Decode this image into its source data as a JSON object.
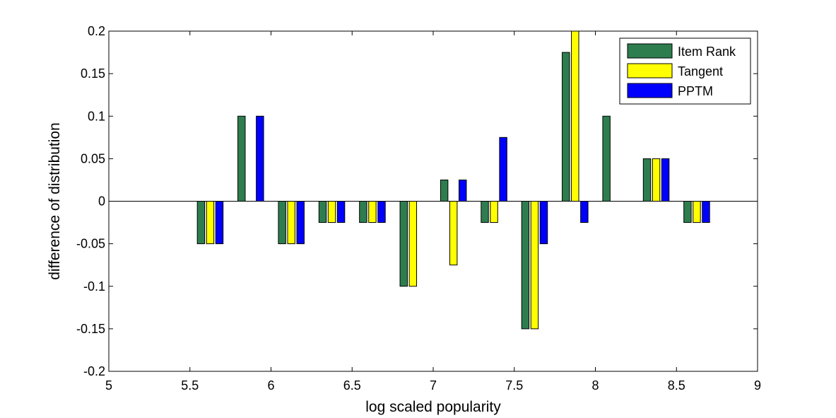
{
  "chart_data": {
    "type": "bar",
    "xlabel": "log scaled popularity",
    "ylabel": "difference of distribution",
    "xlim": [
      5,
      9
    ],
    "ylim": [
      -0.2,
      0.2
    ],
    "xticks": [
      "5",
      "5.5",
      "6",
      "6.5",
      "7",
      "7.5",
      "8",
      "8.5",
      "9"
    ],
    "yticks": [
      "-0.2",
      "-0.15",
      "-0.1",
      "-0.05",
      "0",
      "0.05",
      "0.1",
      "0.15",
      "0.2"
    ],
    "x": [
      5.625,
      5.875,
      6.125,
      6.375,
      6.625,
      6.875,
      7.125,
      7.375,
      7.625,
      7.875,
      8.125,
      8.375,
      8.625
    ],
    "series": [
      {
        "name": "Item Rank",
        "color": "#2e7d4f",
        "values": [
          -0.05,
          0.1,
          -0.05,
          -0.025,
          -0.025,
          -0.1,
          0.025,
          -0.025,
          -0.15,
          0.175,
          0.1,
          0.05,
          -0.025
        ]
      },
      {
        "name": "Tangent",
        "color": "#ffff00",
        "values": [
          -0.05,
          0,
          -0.05,
          -0.025,
          -0.025,
          -0.1,
          -0.075,
          -0.025,
          -0.15,
          0.2,
          0,
          0.05,
          -0.025
        ]
      },
      {
        "name": "PPTM",
        "color": "#0000ff",
        "values": [
          -0.05,
          0.1,
          -0.05,
          -0.025,
          -0.025,
          0,
          0.025,
          0.075,
          -0.05,
          -0.025,
          0,
          0.05,
          -0.025
        ]
      }
    ],
    "legend_position": "top-right",
    "grid": false
  }
}
